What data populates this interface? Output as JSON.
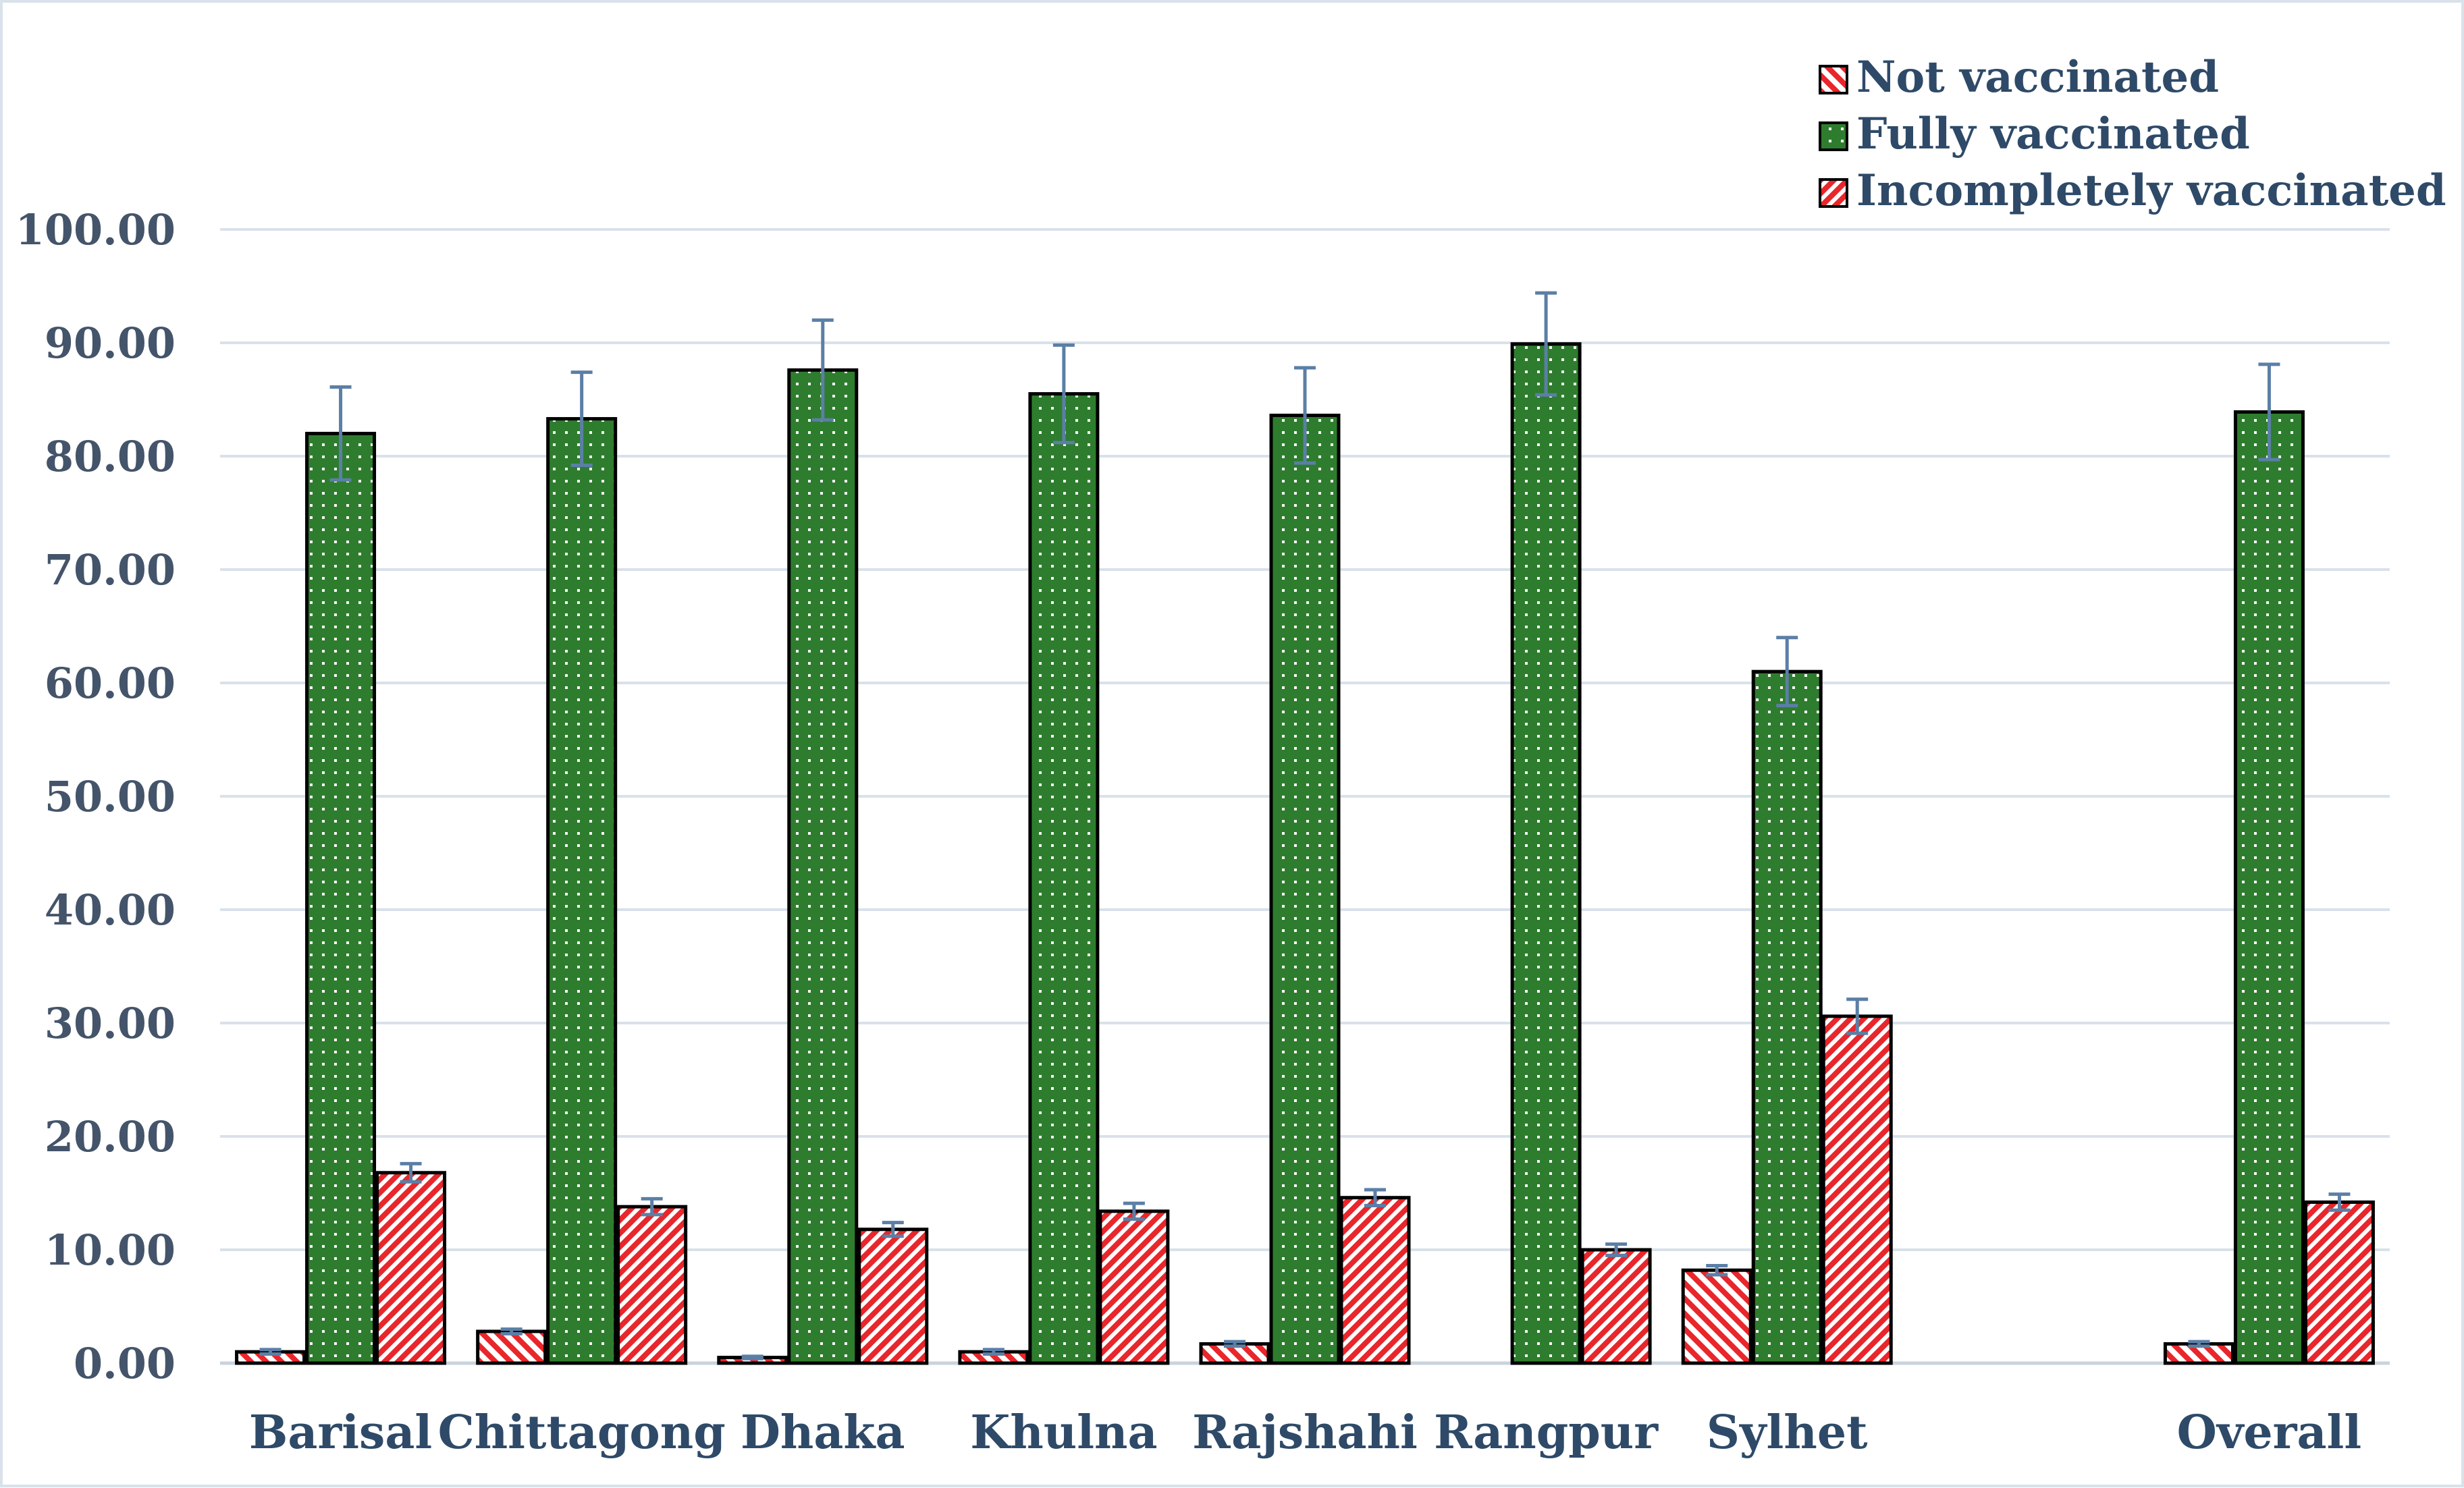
{
  "chart_data": {
    "type": "bar",
    "categories": [
      "Barisal",
      "Chittagong",
      "Dhaka",
      "Khulna",
      "Rajshahi",
      "Rangpur",
      "Sylhet",
      "",
      "Overall"
    ],
    "series": [
      {
        "name": "Not vaccinated",
        "values": [
          1.0,
          2.8,
          0.5,
          1.0,
          1.7,
          null,
          8.2,
          null,
          1.7
        ],
        "error": [
          0.2,
          0.2,
          0.1,
          0.2,
          0.2,
          null,
          0.4,
          null,
          0.2
        ],
        "pattern": "diagonal-stripes-sparse",
        "color": "#e8262b"
      },
      {
        "name": "Fully vaccinated",
        "values": [
          82.0,
          83.3,
          87.6,
          85.5,
          83.6,
          89.9,
          61.0,
          null,
          83.9
        ],
        "error": [
          4.1,
          4.1,
          4.4,
          4.3,
          4.2,
          4.5,
          3.0,
          null,
          4.2
        ],
        "pattern": "dots",
        "color": "#2e7d2e"
      },
      {
        "name": "Incompletely vaccinated",
        "values": [
          16.8,
          13.8,
          11.8,
          13.4,
          14.6,
          10.0,
          30.6,
          null,
          14.2
        ],
        "error": [
          0.8,
          0.7,
          0.6,
          0.7,
          0.7,
          0.5,
          1.5,
          null,
          0.7
        ],
        "pattern": "diagonal-stripes-dense",
        "color": "#e8262b"
      }
    ],
    "y_ticks": [
      "0.00",
      "10.00",
      "20.00",
      "30.00",
      "40.00",
      "50.00",
      "60.00",
      "70.00",
      "80.00",
      "90.00",
      "100.00"
    ],
    "ylim": [
      0,
      100
    ],
    "grid": true,
    "legend_position": "top-right",
    "title": "",
    "xlabel": "",
    "ylabel": "",
    "colors": {
      "gridline": "#d9e1ea",
      "error_bar": "#5b7fa6",
      "label_text": "#2e4a68",
      "border": "#d9e1ea"
    }
  }
}
